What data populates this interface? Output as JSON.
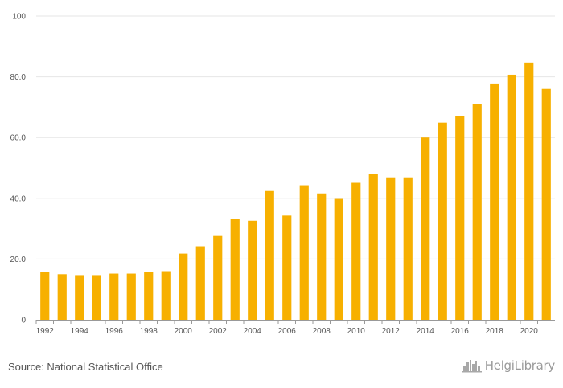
{
  "chart_data": {
    "type": "bar",
    "title": "",
    "xlabel": "",
    "ylabel": "",
    "ylim": [
      0,
      100
    ],
    "y_ticks": [
      0,
      20,
      40,
      60,
      80,
      100
    ],
    "y_tick_labels": [
      "0",
      "20.0",
      "40.0",
      "60.0",
      "80.0",
      "100"
    ],
    "categories": [
      "1992",
      "1993",
      "1994",
      "1995",
      "1996",
      "1997",
      "1998",
      "1999",
      "2000",
      "2001",
      "2002",
      "2003",
      "2004",
      "2005",
      "2006",
      "2007",
      "2008",
      "2009",
      "2010",
      "2011",
      "2012",
      "2013",
      "2014",
      "2015",
      "2016",
      "2017",
      "2018",
      "2019",
      "2020",
      "2021"
    ],
    "x_tick_labels": [
      "1992",
      "1994",
      "1996",
      "1998",
      "2000",
      "2002",
      "2004",
      "2006",
      "2008",
      "2010",
      "2012",
      "2014",
      "2016",
      "2018",
      "2020"
    ],
    "values": [
      15.8,
      15.0,
      14.7,
      14.7,
      15.2,
      15.2,
      15.8,
      16.0,
      21.8,
      24.2,
      27.6,
      33.2,
      32.6,
      42.4,
      34.3,
      44.3,
      41.6,
      39.8,
      45.1,
      48.1,
      46.9,
      46.9,
      60.0,
      64.9,
      67.1,
      71.0,
      77.8,
      80.7,
      84.7,
      76.0
    ],
    "bar_color": "#f7b000",
    "grid": true
  },
  "footer": {
    "source": "Source: National Statistical Office",
    "logo_text": "HelgiLibrary"
  }
}
